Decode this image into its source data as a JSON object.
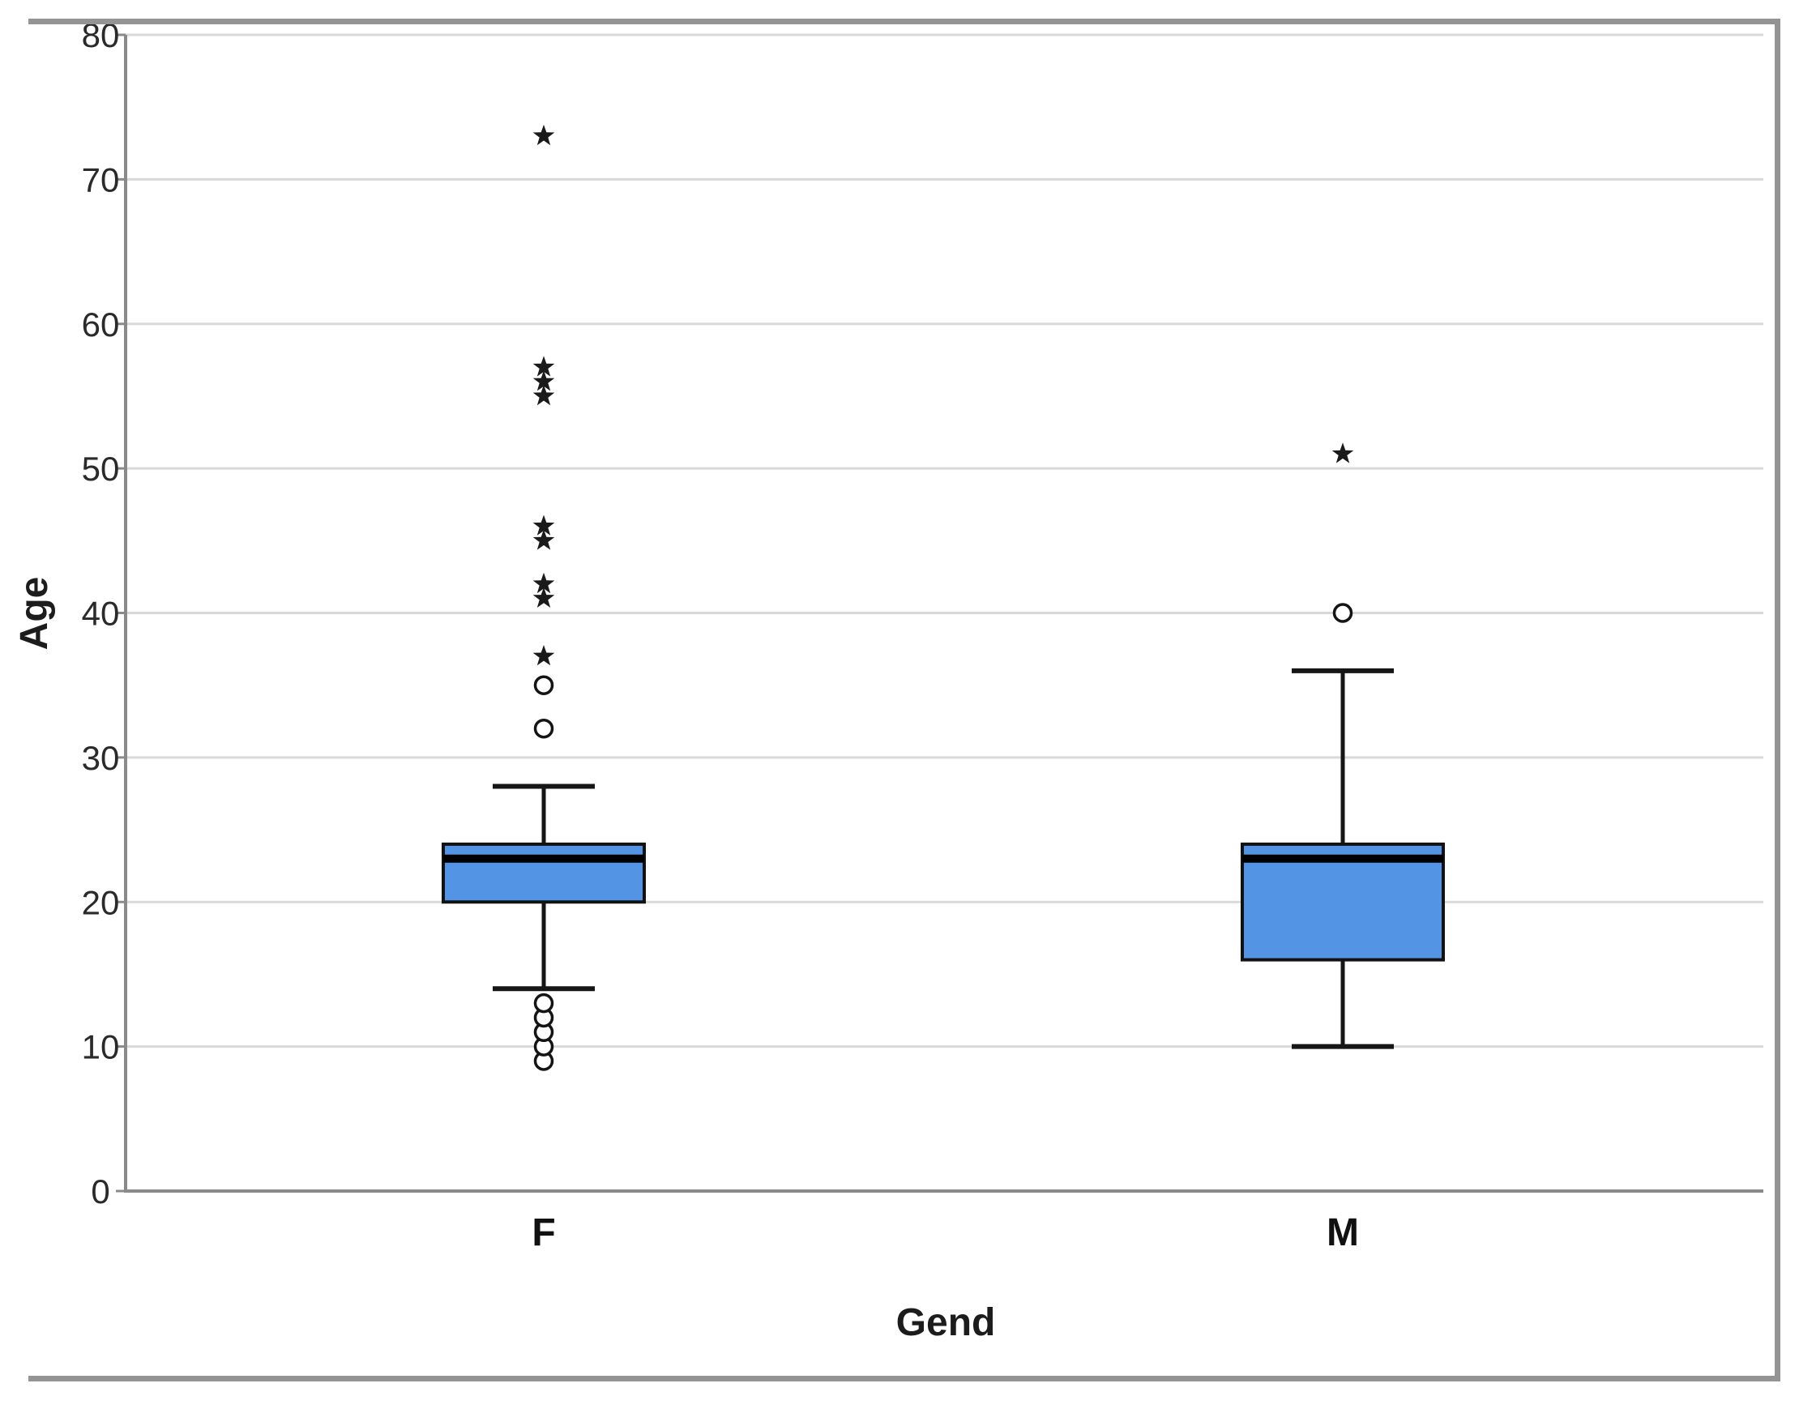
{
  "figure": {
    "background": "#ffffff",
    "frame_color": "#949494"
  },
  "chart_data": {
    "type": "boxplot",
    "title": "",
    "xlabel": "Gend",
    "ylabel": "Age",
    "ylim": [
      0,
      80
    ],
    "yticks": [
      0,
      10,
      20,
      30,
      40,
      50,
      60,
      70,
      80
    ],
    "categories": [
      "F",
      "M"
    ],
    "series": [
      {
        "category": "F",
        "q1": 20,
        "median": 23,
        "q3": 24,
        "whisker_low": 14,
        "whisker_high": 28,
        "outliers": [
          9,
          10,
          11,
          12,
          13,
          32,
          35
        ],
        "extremes": [
          37,
          41,
          42,
          45,
          46,
          55,
          56,
          57,
          73
        ]
      },
      {
        "category": "M",
        "q1": 16,
        "median": 23,
        "q3": 24,
        "whisker_low": 10,
        "whisker_high": 36,
        "outliers": [
          40
        ],
        "extremes": [
          51
        ]
      }
    ],
    "grid": "horizontal",
    "legend_position": "none",
    "box_fill": "#5494e4",
    "box_stroke": "#121212",
    "median_color": "#000000",
    "whisker_color": "#161616",
    "outlier_color": "#141414",
    "grid_color": "#d9d9d9",
    "axis_color": "#8a8a8a",
    "text_color": "#1c1c1c",
    "outlier_marker": "circle",
    "extreme_marker": "star"
  }
}
